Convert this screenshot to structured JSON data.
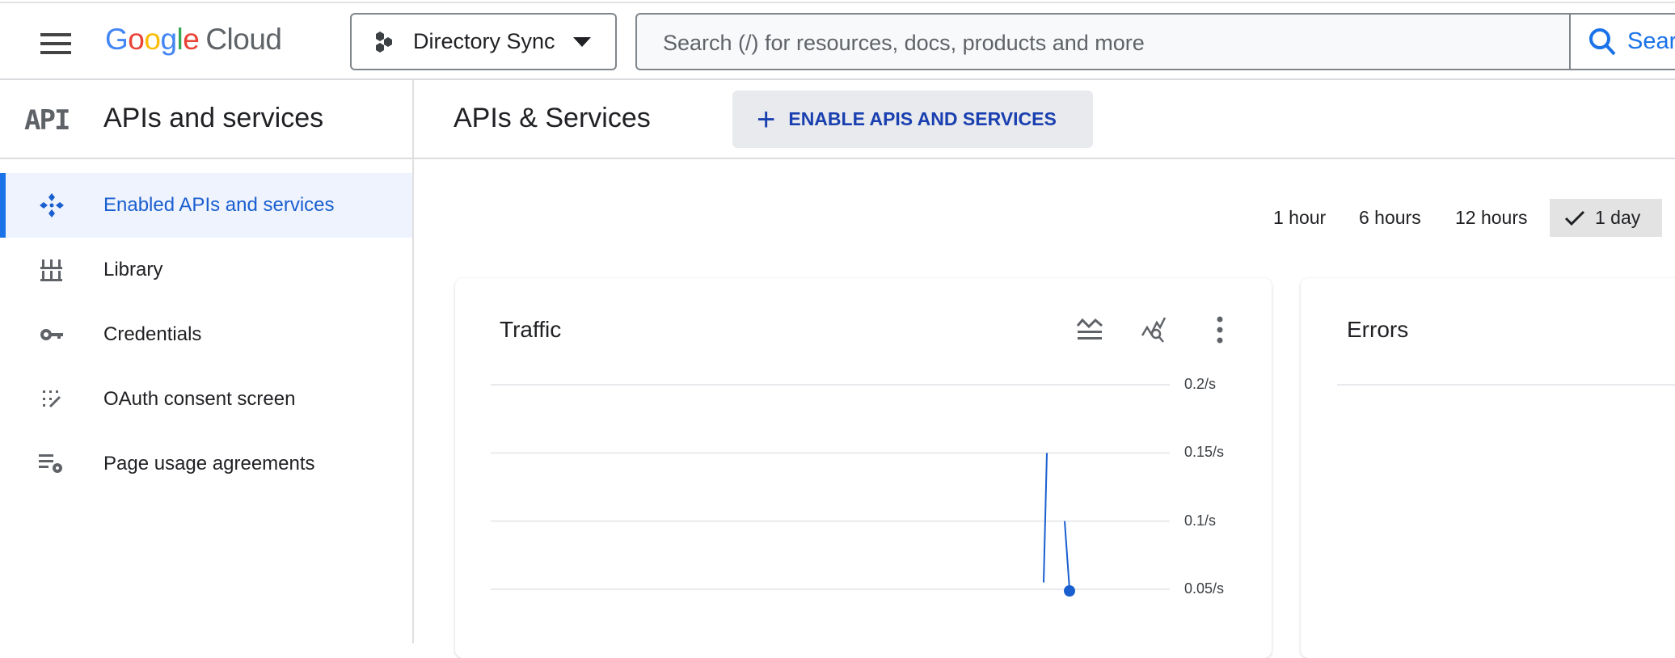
{
  "header": {
    "logo": {
      "google": "Google",
      "cloud": "Cloud"
    },
    "project": "Directory Sync",
    "search_placeholder": "Search (/) for resources, docs, products and more",
    "search_button": "Sear"
  },
  "sidebar": {
    "title": "APIs and services",
    "logo_text": "API",
    "items": [
      {
        "label": "Enabled APIs and services",
        "icon": "enabled-apis-icon",
        "active": true
      },
      {
        "label": "Library",
        "icon": "library-icon"
      },
      {
        "label": "Credentials",
        "icon": "key-icon"
      },
      {
        "label": "OAuth consent screen",
        "icon": "oauth-consent-icon"
      },
      {
        "label": "Page usage agreements",
        "icon": "settings-list-icon"
      }
    ]
  },
  "main": {
    "title": "APIs & Services",
    "enable_button": "ENABLE APIS AND SERVICES",
    "time_ranges": [
      "1 hour",
      "6 hours",
      "12 hours",
      "1 day"
    ],
    "selected_range": "1 day",
    "errors_card": {
      "title": "Errors"
    }
  },
  "colors": {
    "accent": "#1a73e8",
    "series": "#1a5fd0",
    "grid": "#e8eaed"
  },
  "chart_data": {
    "type": "line",
    "title": "Traffic",
    "y_ticks": [
      "0.2/s",
      "0.15/s",
      "0.1/s",
      "0.05/s"
    ],
    "ylim_visible": [
      0.05,
      0.2
    ],
    "grid": true,
    "series": [
      {
        "values": [
          0.055,
          0.15,
          0.1,
          0.05
        ]
      }
    ]
  }
}
